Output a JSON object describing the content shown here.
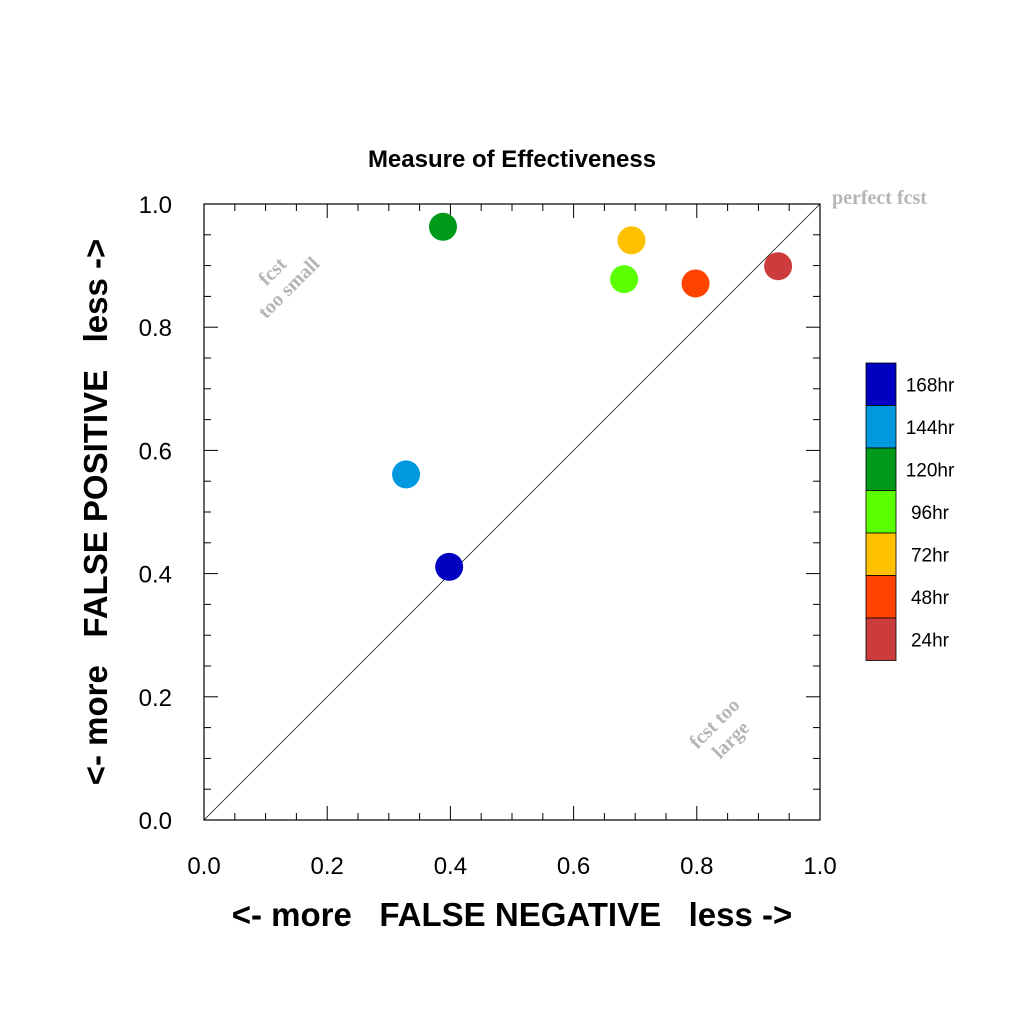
{
  "chart_data": {
    "type": "scatter",
    "title": "Measure of Effectiveness",
    "xlabel": "<- more   FALSE NEGATIVE   less ->",
    "ylabel": "<- more   FALSE POSITIVE   less ->",
    "xlim": [
      0.0,
      1.0
    ],
    "ylim": [
      0.0,
      1.0
    ],
    "x_ticks": [
      "0.0",
      "0.2",
      "0.4",
      "0.6",
      "0.8",
      "1.0"
    ],
    "y_ticks": [
      "0.0",
      "0.2",
      "0.4",
      "0.6",
      "0.8",
      "1.0"
    ],
    "grid": false,
    "legend_position": "right",
    "diagonal_line": true,
    "annotations": {
      "perfect": "perfect fcst",
      "too_small_line1": "fcst",
      "too_small_line2": "too small",
      "too_large_line1": "fcst too",
      "too_large_line2": "large"
    },
    "series": [
      {
        "name": "168hr",
        "color": "#0000c0",
        "x": 0.398,
        "y": 0.411
      },
      {
        "name": "144hr",
        "color": "#0099e0",
        "x": 0.328,
        "y": 0.561
      },
      {
        "name": "120hr",
        "color": "#009a1a",
        "x": 0.388,
        "y": 0.963
      },
      {
        "name": "96hr",
        "color": "#5aff00",
        "x": 0.682,
        "y": 0.878
      },
      {
        "name": "72hr",
        "color": "#ffc000",
        "x": 0.694,
        "y": 0.941
      },
      {
        "name": "48hr",
        "color": "#ff4400",
        "x": 0.798,
        "y": 0.871
      },
      {
        "name": "24hr",
        "color": "#cc3c3c",
        "x": 0.932,
        "y": 0.899
      }
    ]
  }
}
